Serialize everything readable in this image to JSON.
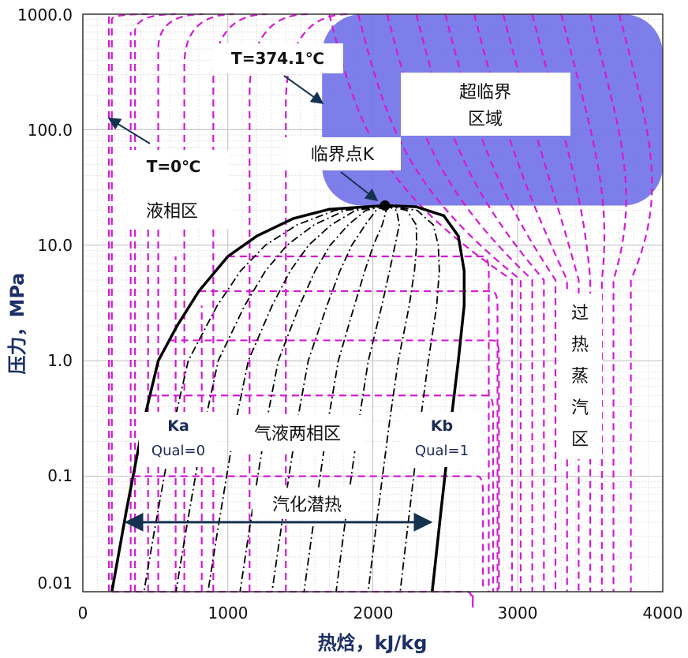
{
  "chart_data": {
    "type": "line",
    "xlabel": "热焓，kJ/kg",
    "ylabel": "压力，MPa",
    "xlim": [
      0,
      4000
    ],
    "ylim": [
      0.01,
      1000
    ],
    "yscale": "log",
    "x_ticks": [
      "0",
      "1000",
      "2000",
      "3000",
      "4000"
    ],
    "y_ticks": [
      "1000.0",
      "100.0",
      "10.0",
      "1.0",
      "0.1",
      "0.01"
    ],
    "y_tick_values": [
      1000,
      100,
      10,
      1,
      0.1,
      0.01
    ],
    "grid": true,
    "colors": {
      "saturation": "#000000",
      "isotherm": "#d21ad2",
      "quality": "#000000",
      "supercritical": "#7070e8",
      "arrow": "#13324f"
    },
    "critical_point": {
      "h": 2084,
      "p": 22.06
    },
    "saturated_liquid": [
      [
        200,
        0.01
      ],
      [
        300,
        0.05
      ],
      [
        420,
        0.3
      ],
      [
        520,
        1
      ],
      [
        650,
        2
      ],
      [
        800,
        4
      ],
      [
        1000,
        8
      ],
      [
        1200,
        12
      ],
      [
        1450,
        17
      ],
      [
        1700,
        20.5
      ],
      [
        2084,
        22.06
      ]
    ],
    "saturated_vapor": [
      [
        2084,
        22.06
      ],
      [
        2300,
        21.5
      ],
      [
        2490,
        18
      ],
      [
        2590,
        12
      ],
      [
        2630,
        6
      ],
      [
        2630,
        3
      ],
      [
        2590,
        1
      ],
      [
        2540,
        0.3
      ],
      [
        2470,
        0.05
      ],
      [
        2410,
        0.01
      ]
    ],
    "quality_lines": [
      0.1,
      0.2,
      0.3,
      0.4,
      0.5,
      0.6,
      0.7,
      0.8,
      0.9
    ],
    "isotherm_pressures": [
      0.01,
      0.1,
      0.5,
      1.5,
      4,
      8
    ],
    "latent_heat_arrow": {
      "x1": 300,
      "x2": 2400,
      "p": 0.04
    },
    "supercritical_region": {
      "h1": 1650,
      "h2": 4000,
      "p1": 22.06,
      "p2": 1000
    },
    "labels": {
      "t374": "T=374.1℃",
      "t0": "T=0℃",
      "supercritical_1": "超临界",
      "supercritical_2": "区域",
      "critical": "临界点K",
      "liquid": "液相区",
      "superheated": [
        "过",
        "热",
        "蒸",
        "汽",
        "区"
      ],
      "ka": "Ka",
      "ka_q": "Qual=0",
      "two_phase": "气液两相区",
      "kb": "Kb",
      "kb_q": "Qual=1",
      "latent": "汽化潜热"
    }
  }
}
